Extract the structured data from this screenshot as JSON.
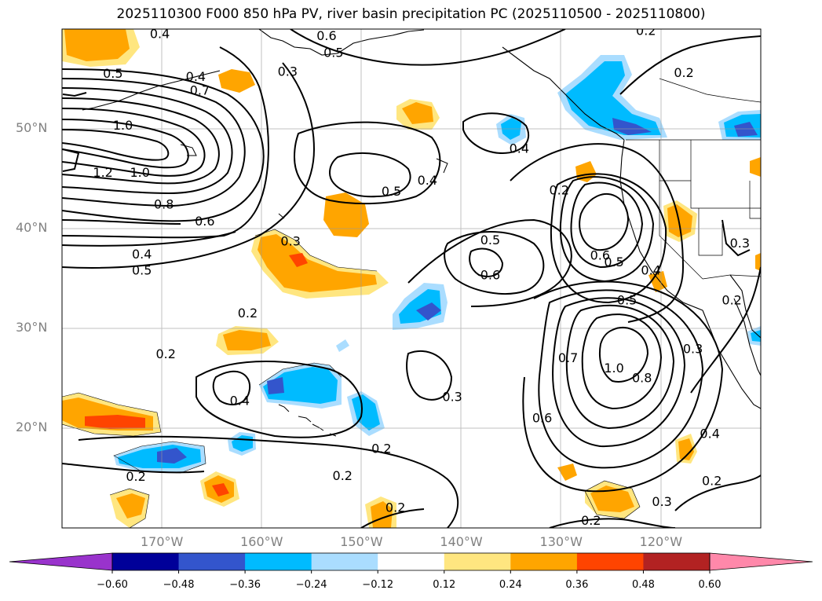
{
  "title": "2025110300 F000 850 hPa PV, river basin precipitation PC (2025110500 - 2025110800)",
  "lat_labels": [
    {
      "text": "50°N",
      "value": 50
    },
    {
      "text": "40°N",
      "value": 40
    },
    {
      "text": "30°N",
      "value": 30
    },
    {
      "text": "20°N",
      "value": 20
    }
  ],
  "lon_labels": [
    {
      "text": "170°W",
      "value": -170
    },
    {
      "text": "160°W",
      "value": -160
    },
    {
      "text": "150°W",
      "value": -150
    },
    {
      "text": "140°W",
      "value": -140
    },
    {
      "text": "130°W",
      "value": -130
    },
    {
      "text": "120°W",
      "value": -120
    }
  ],
  "map_extent": {
    "lon_min": -180,
    "lon_max": -110,
    "lat_min": 10,
    "lat_max": 60
  },
  "colorbar": {
    "ticks": [
      "−0.60",
      "−0.48",
      "−0.36",
      "−0.24",
      "−0.12",
      "0.12",
      "0.24",
      "0.36",
      "0.48",
      "0.60"
    ],
    "colors": [
      "#9933cc",
      "#000099",
      "#3355cc",
      "#00bbff",
      "#aaddff",
      "#ffffff",
      "#ffe680",
      "#ffa500",
      "#ff4400",
      "#b22222",
      "#ff88aa"
    ]
  },
  "contour_labels": [
    {
      "text": "0.4",
      "lon": -170.2,
      "lat": 59.5
    },
    {
      "text": "0.6",
      "lon": -153.5,
      "lat": 59.3
    },
    {
      "text": "0.5",
      "lon": -152.8,
      "lat": 57.6
    },
    {
      "text": "0.2",
      "lon": -121.5,
      "lat": 59.8
    },
    {
      "text": "0.5",
      "lon": -174.9,
      "lat": 55.5
    },
    {
      "text": "0.4",
      "lon": -166.6,
      "lat": 55.2
    },
    {
      "text": "0.7",
      "lon": -166.2,
      "lat": 53.8
    },
    {
      "text": "0.3",
      "lon": -157.4,
      "lat": 55.7
    },
    {
      "text": "0.2",
      "lon": -117.7,
      "lat": 55.6
    },
    {
      "text": "1.0",
      "lon": -173.9,
      "lat": 50.3
    },
    {
      "text": "0.4",
      "lon": -134.2,
      "lat": 48.0
    },
    {
      "text": "1.2",
      "lon": -175.9,
      "lat": 45.6
    },
    {
      "text": "1.0",
      "lon": -172.2,
      "lat": 45.6
    },
    {
      "text": "0.4",
      "lon": -143.4,
      "lat": 44.8
    },
    {
      "text": "0.5",
      "lon": -147.0,
      "lat": 43.7
    },
    {
      "text": "0.2",
      "lon": -130.2,
      "lat": 43.8
    },
    {
      "text": "0.8",
      "lon": -169.8,
      "lat": 42.4
    },
    {
      "text": "0.6",
      "lon": -165.7,
      "lat": 40.7
    },
    {
      "text": "0.3",
      "lon": -157.1,
      "lat": 38.7
    },
    {
      "text": "0.5",
      "lon": -137.1,
      "lat": 38.8
    },
    {
      "text": "0.4",
      "lon": -172.0,
      "lat": 37.4
    },
    {
      "text": "0.5",
      "lon": -172.0,
      "lat": 35.8
    },
    {
      "text": "0.6",
      "lon": -137.1,
      "lat": 35.3
    },
    {
      "text": "0.6",
      "lon": -126.1,
      "lat": 37.3
    },
    {
      "text": "0.5",
      "lon": -124.7,
      "lat": 36.6
    },
    {
      "text": "0.4",
      "lon": -121.0,
      "lat": 35.8
    },
    {
      "text": "0.5",
      "lon": -123.4,
      "lat": 32.8
    },
    {
      "text": "0.2",
      "lon": -112.9,
      "lat": 32.8
    },
    {
      "text": "0.3",
      "lon": -112.1,
      "lat": 38.5
    },
    {
      "text": "0.2",
      "lon": -161.4,
      "lat": 31.5
    },
    {
      "text": "0.2",
      "lon": -169.6,
      "lat": 27.4
    },
    {
      "text": "0.7",
      "lon": -129.3,
      "lat": 27.0
    },
    {
      "text": "1.0",
      "lon": -124.7,
      "lat": 26.0
    },
    {
      "text": "0.8",
      "lon": -121.9,
      "lat": 25.0
    },
    {
      "text": "0.3",
      "lon": -116.8,
      "lat": 27.9
    },
    {
      "text": "0.3",
      "lon": -140.9,
      "lat": 23.1
    },
    {
      "text": "0.4",
      "lon": -162.2,
      "lat": 22.7
    },
    {
      "text": "0.6",
      "lon": -131.9,
      "lat": 21.0
    },
    {
      "text": "0.4",
      "lon": -115.1,
      "lat": 19.4
    },
    {
      "text": "0.2",
      "lon": -148.0,
      "lat": 17.9
    },
    {
      "text": "0.2",
      "lon": -172.6,
      "lat": 15.1
    },
    {
      "text": "0.2",
      "lon": -151.9,
      "lat": 15.2
    },
    {
      "text": "0.2",
      "lon": -114.9,
      "lat": 14.7
    },
    {
      "text": "0.3",
      "lon": -119.9,
      "lat": 12.6
    },
    {
      "text": "0.2",
      "lon": -146.6,
      "lat": 12.0
    },
    {
      "text": "0.2",
      "lon": -127.0,
      "lat": 10.7
    }
  ]
}
